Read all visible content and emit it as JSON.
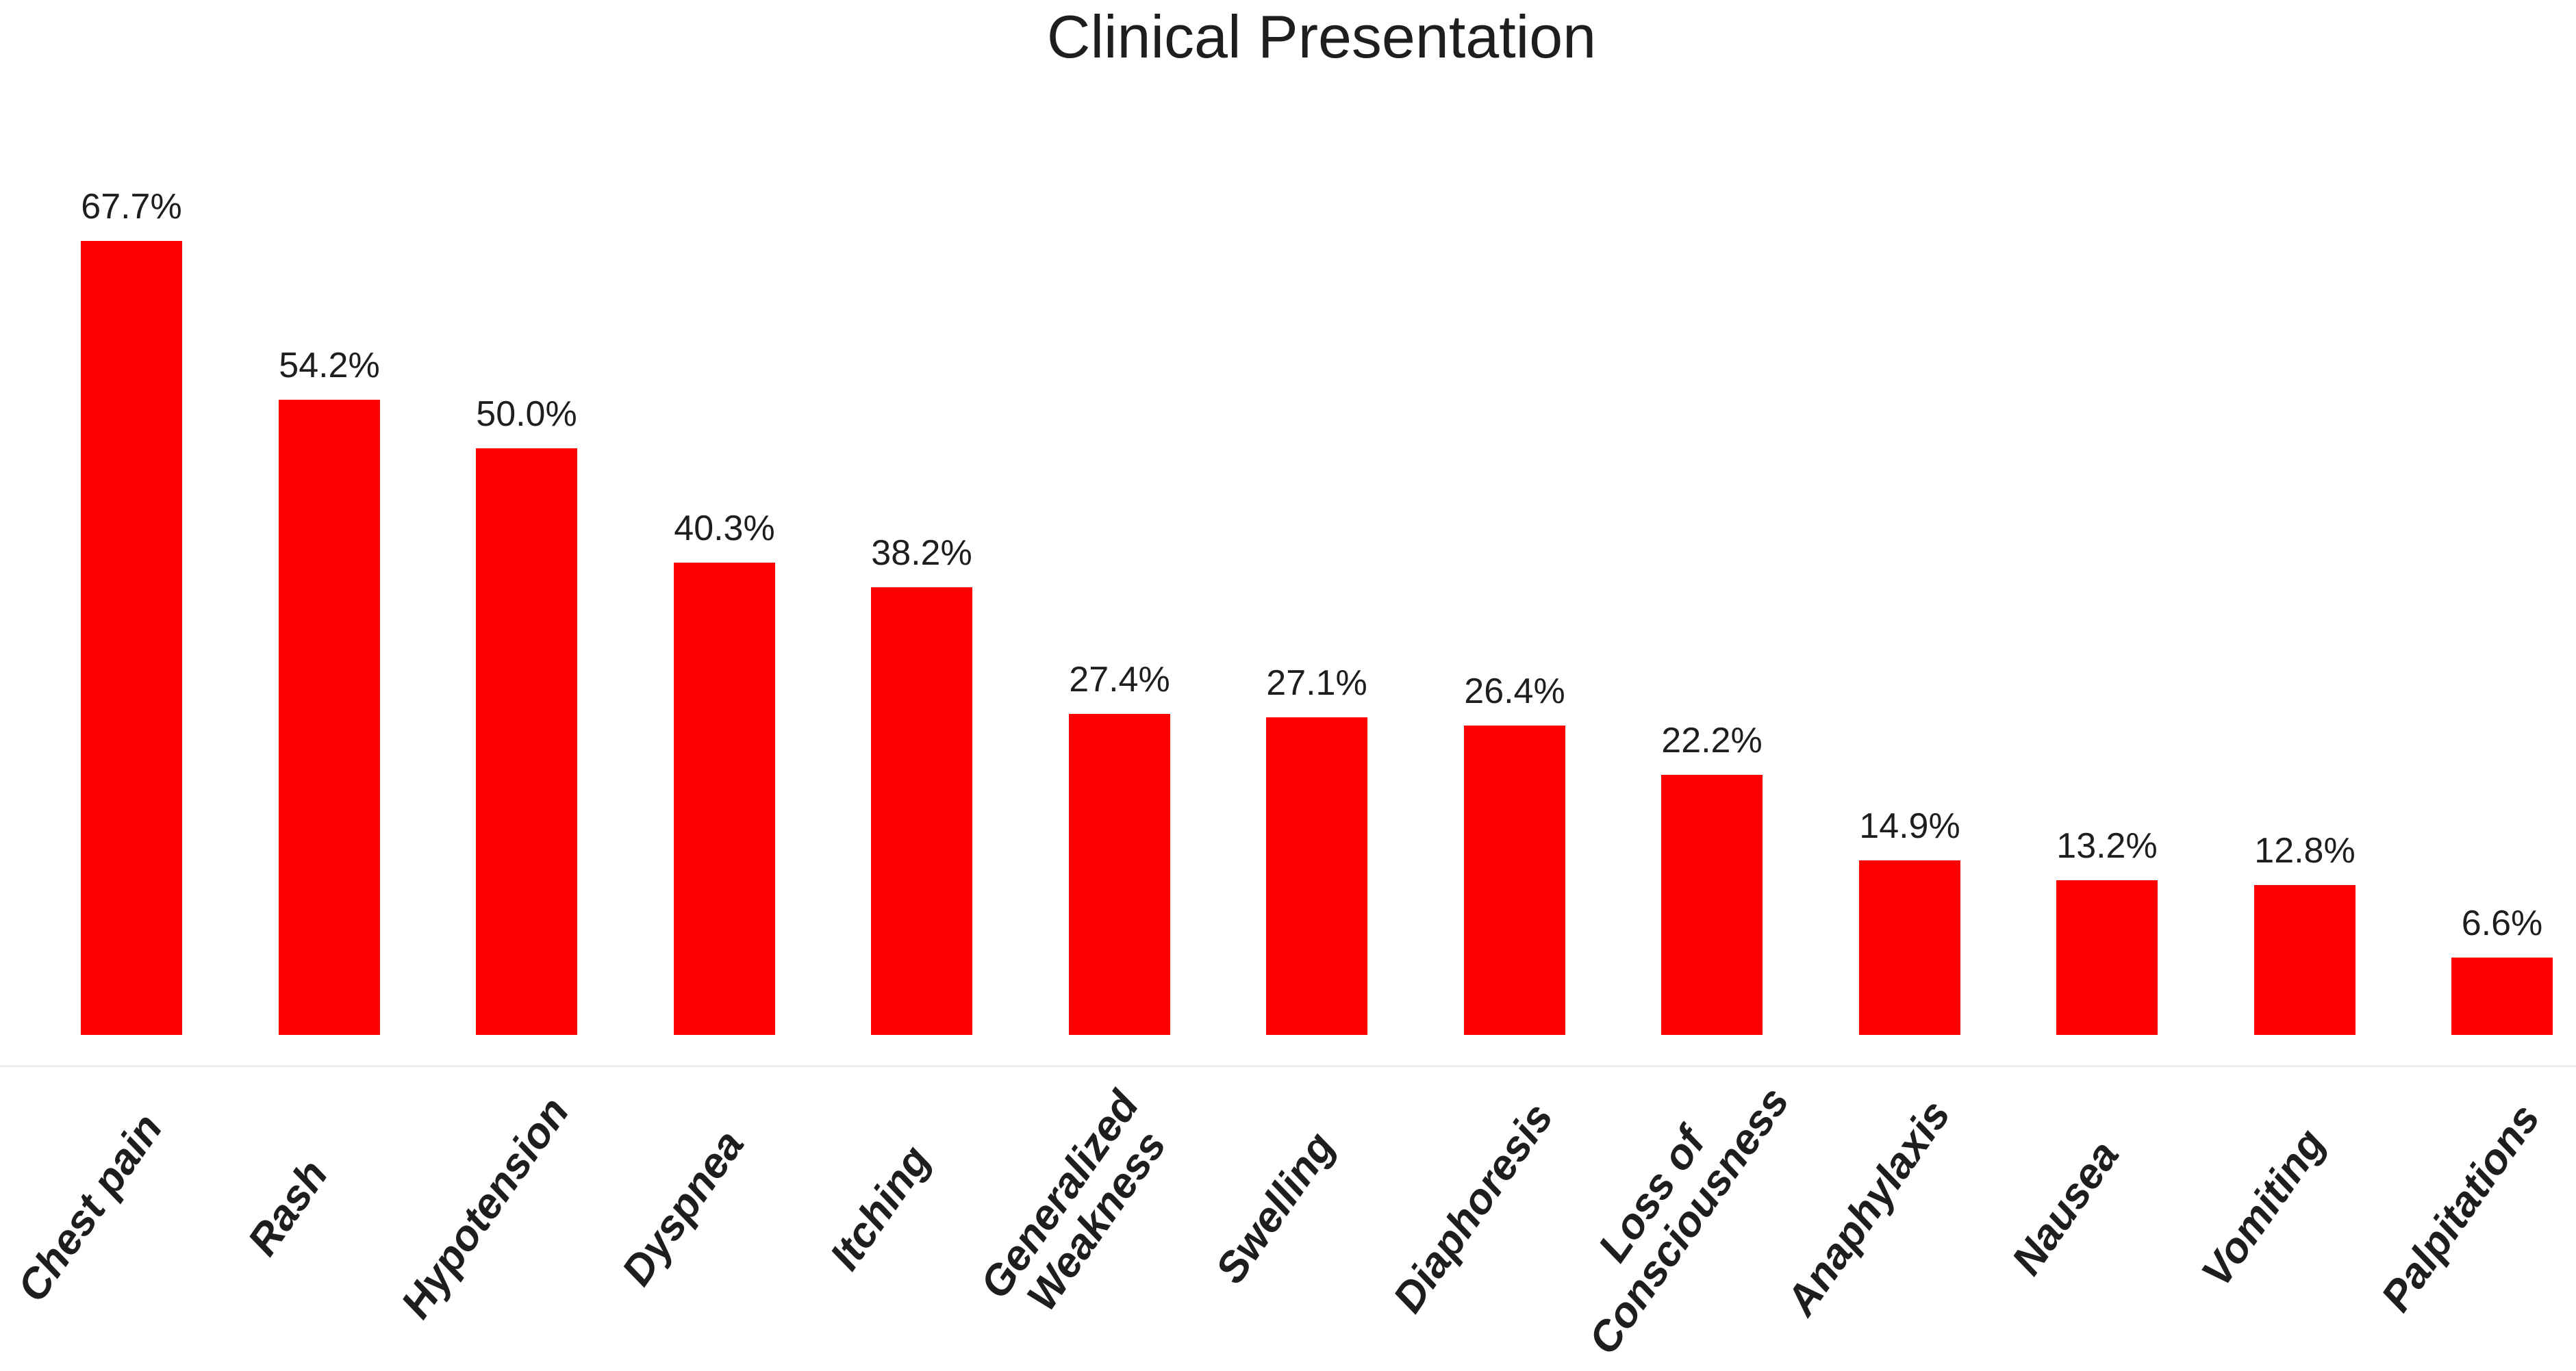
{
  "chart_data": {
    "type": "bar",
    "title": "Clinical Presentation",
    "categories": [
      "Chest pain",
      "Rash",
      "Hypotension",
      "Dyspnea",
      "Itching",
      "Generalized\nWeakness",
      "Swelling",
      "Diaphoresis",
      "Loss of\nConsciousness",
      "Anaphylaxis",
      "Nausea",
      "Vomiting",
      "Palpitations"
    ],
    "values": [
      67.7,
      54.2,
      50.0,
      40.3,
      38.2,
      27.4,
      27.1,
      26.4,
      22.2,
      14.9,
      13.2,
      12.8,
      6.6
    ],
    "value_labels": [
      "67.7%",
      "54.2%",
      "50.0%",
      "40.3%",
      "38.2%",
      "27.4%",
      "27.1%",
      "26.4%",
      "22.2%",
      "14.9%",
      "13.2%",
      "12.8%",
      "6.6%"
    ],
    "unit": "%",
    "xlabel": "",
    "ylabel": "",
    "ylim": [
      0,
      75
    ],
    "grid": false,
    "legend_position": "none",
    "bar_labels_position": "above",
    "x_tick_rotation_deg": 55,
    "bar_color": "#ff0000",
    "text_color": "#1e1e1e",
    "baseline_color": "#eeeeee"
  }
}
